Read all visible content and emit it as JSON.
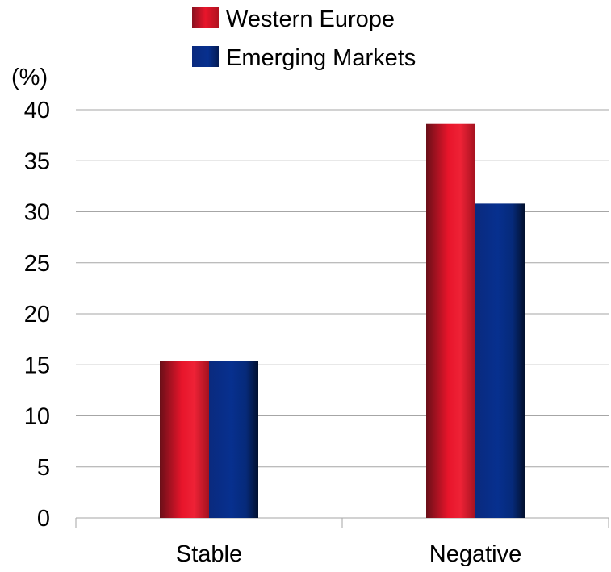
{
  "chart_data": {
    "type": "bar",
    "ylabel": "(%)",
    "categories": [
      "Stable",
      "Negative"
    ],
    "series": [
      {
        "name": "Western Europe",
        "values": [
          15.4,
          38.6
        ],
        "color": "#e31b2d"
      },
      {
        "name": "Emerging Markets",
        "values": [
          15.4,
          30.8
        ],
        "color": "#0b2f8a"
      }
    ],
    "ylim": [
      0,
      40
    ],
    "yticks": [
      0,
      5,
      10,
      15,
      20,
      25,
      30,
      35,
      40
    ],
    "grid": true,
    "legend": "top-center"
  }
}
